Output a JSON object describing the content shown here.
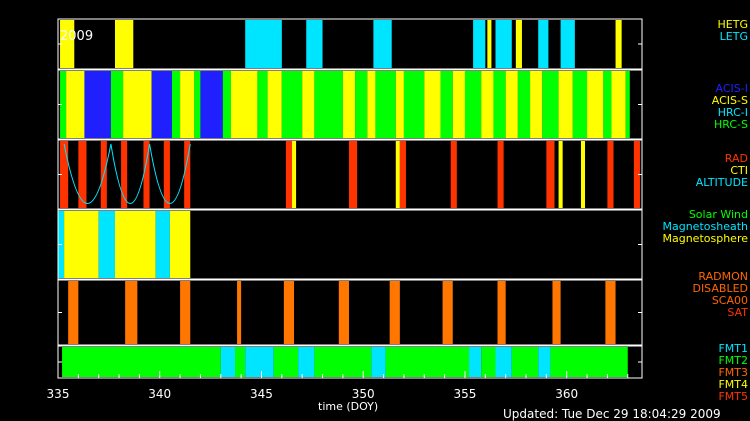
{
  "chart_data": {
    "type": "timeline",
    "year_label": "2009",
    "xlabel": "time (DOY)",
    "xlim": [
      335,
      363.7
    ],
    "x_ticks": [
      335,
      340,
      345,
      350,
      355,
      360
    ],
    "updated": "Updated: Tue Dec 29 18:04:29 2009",
    "panels": [
      {
        "id": "grating",
        "legend": [
          {
            "label": "HETG",
            "color": "#ffff00"
          },
          {
            "label": "LETG",
            "color": "#00e5ff"
          }
        ],
        "segments": [
          {
            "start": 335.1,
            "end": 335.8,
            "color": "#ffff00"
          },
          {
            "start": 337.8,
            "end": 338.7,
            "color": "#ffff00"
          },
          {
            "start": 344.2,
            "end": 346.0,
            "color": "#00e5ff"
          },
          {
            "start": 347.2,
            "end": 348.0,
            "color": "#00e5ff"
          },
          {
            "start": 350.5,
            "end": 351.4,
            "color": "#00e5ff"
          },
          {
            "start": 355.4,
            "end": 356.0,
            "color": "#00e5ff"
          },
          {
            "start": 356.1,
            "end": 356.3,
            "color": "#ffff00"
          },
          {
            "start": 356.5,
            "end": 357.3,
            "color": "#00e5ff"
          },
          {
            "start": 357.5,
            "end": 357.8,
            "color": "#ffff00"
          },
          {
            "start": 358.6,
            "end": 359.1,
            "color": "#00e5ff"
          },
          {
            "start": 359.7,
            "end": 360.4,
            "color": "#00e5ff"
          },
          {
            "start": 362.4,
            "end": 362.7,
            "color": "#ffff00"
          }
        ]
      },
      {
        "id": "instrument",
        "legend": [
          {
            "label": "ACIS-I",
            "color": "#2020ff"
          },
          {
            "label": "ACIS-S",
            "color": "#ffff00"
          },
          {
            "label": "HRC-I",
            "color": "#00e5ff"
          },
          {
            "label": "HRC-S",
            "color": "#00ff00"
          }
        ],
        "segments": [
          {
            "start": 335.1,
            "end": 335.4,
            "color": "#00ff00"
          },
          {
            "start": 335.4,
            "end": 336.3,
            "color": "#ffff00"
          },
          {
            "start": 336.3,
            "end": 337.6,
            "color": "#2020ff"
          },
          {
            "start": 337.6,
            "end": 338.2,
            "color": "#00ff00"
          },
          {
            "start": 338.2,
            "end": 339.6,
            "color": "#ffff00"
          },
          {
            "start": 339.6,
            "end": 340.6,
            "color": "#2020ff"
          },
          {
            "start": 340.6,
            "end": 341.0,
            "color": "#00ff00"
          },
          {
            "start": 341.0,
            "end": 341.7,
            "color": "#ffff00"
          },
          {
            "start": 341.7,
            "end": 342.0,
            "color": "#00ff00"
          },
          {
            "start": 342.0,
            "end": 343.1,
            "color": "#2020ff"
          },
          {
            "start": 343.1,
            "end": 343.5,
            "color": "#00ff00"
          },
          {
            "start": 343.5,
            "end": 344.8,
            "color": "#ffff00"
          },
          {
            "start": 344.8,
            "end": 345.3,
            "color": "#00ff00"
          },
          {
            "start": 345.3,
            "end": 346.0,
            "color": "#ffff00"
          },
          {
            "start": 346.0,
            "end": 347.0,
            "color": "#00ff00"
          },
          {
            "start": 347.0,
            "end": 347.6,
            "color": "#ffff00"
          },
          {
            "start": 347.6,
            "end": 349.0,
            "color": "#00ff00"
          },
          {
            "start": 349.0,
            "end": 349.6,
            "color": "#ffff00"
          },
          {
            "start": 349.6,
            "end": 350.2,
            "color": "#00ff00"
          },
          {
            "start": 350.2,
            "end": 350.6,
            "color": "#ffff00"
          },
          {
            "start": 350.6,
            "end": 351.6,
            "color": "#00ff00"
          },
          {
            "start": 351.6,
            "end": 352.0,
            "color": "#ffff00"
          },
          {
            "start": 352.0,
            "end": 353.0,
            "color": "#00ff00"
          },
          {
            "start": 353.0,
            "end": 353.8,
            "color": "#ffff00"
          },
          {
            "start": 353.8,
            "end": 354.4,
            "color": "#00ff00"
          },
          {
            "start": 354.4,
            "end": 355.0,
            "color": "#ffff00"
          },
          {
            "start": 355.0,
            "end": 355.8,
            "color": "#00ff00"
          },
          {
            "start": 355.8,
            "end": 356.4,
            "color": "#ffff00"
          },
          {
            "start": 356.4,
            "end": 357.0,
            "color": "#00ff00"
          },
          {
            "start": 357.0,
            "end": 357.6,
            "color": "#ffff00"
          },
          {
            "start": 357.6,
            "end": 358.2,
            "color": "#00ff00"
          },
          {
            "start": 358.2,
            "end": 358.8,
            "color": "#ffff00"
          },
          {
            "start": 358.8,
            "end": 359.6,
            "color": "#00ff00"
          },
          {
            "start": 359.6,
            "end": 360.3,
            "color": "#ffff00"
          },
          {
            "start": 360.3,
            "end": 361.0,
            "color": "#00ff00"
          },
          {
            "start": 361.0,
            "end": 361.8,
            "color": "#ffff00"
          },
          {
            "start": 361.8,
            "end": 362.2,
            "color": "#00ff00"
          },
          {
            "start": 362.2,
            "end": 362.9,
            "color": "#ffff00"
          },
          {
            "start": 362.9,
            "end": 363.1,
            "color": "#00ff00"
          }
        ]
      },
      {
        "id": "radiation",
        "legend": [
          {
            "label": "RAD",
            "color": "#ff3300"
          },
          {
            "label": "CTI",
            "color": "#ffff00"
          },
          {
            "label": "ALTITUDE",
            "color": "#00e5ff"
          }
        ],
        "segments": [
          {
            "start": 335.1,
            "end": 335.5,
            "color": "#ff3300"
          },
          {
            "start": 336.0,
            "end": 336.4,
            "color": "#ff3300"
          },
          {
            "start": 337.1,
            "end": 337.4,
            "color": "#ff3300"
          },
          {
            "start": 338.1,
            "end": 338.4,
            "color": "#ff3300"
          },
          {
            "start": 339.2,
            "end": 339.5,
            "color": "#ff3300"
          },
          {
            "start": 340.2,
            "end": 340.5,
            "color": "#ff3300"
          },
          {
            "start": 341.2,
            "end": 341.5,
            "color": "#ff3300"
          },
          {
            "start": 346.2,
            "end": 346.5,
            "color": "#ff3300"
          },
          {
            "start": 346.5,
            "end": 346.7,
            "color": "#ffff00"
          },
          {
            "start": 349.3,
            "end": 349.7,
            "color": "#ff3300"
          },
          {
            "start": 351.6,
            "end": 351.8,
            "color": "#ffff00"
          },
          {
            "start": 351.8,
            "end": 352.1,
            "color": "#ff3300"
          },
          {
            "start": 354.3,
            "end": 354.6,
            "color": "#ff3300"
          },
          {
            "start": 356.6,
            "end": 356.9,
            "color": "#ff3300"
          },
          {
            "start": 359.0,
            "end": 359.4,
            "color": "#ff3300"
          },
          {
            "start": 359.6,
            "end": 359.8,
            "color": "#ffff00"
          },
          {
            "start": 360.7,
            "end": 360.9,
            "color": "#ffff00"
          },
          {
            "start": 362.0,
            "end": 362.3,
            "color": "#ff3300"
          },
          {
            "start": 363.3,
            "end": 363.6,
            "color": "#ff3300"
          }
        ],
        "altitude_arcs": [
          {
            "start": 335.3,
            "end": 337.6
          },
          {
            "start": 337.6,
            "end": 339.5
          },
          {
            "start": 339.5,
            "end": 341.5
          }
        ]
      },
      {
        "id": "environment",
        "legend": [
          {
            "label": "Solar Wind",
            "color": "#00ff00"
          },
          {
            "label": "Magnetosheath",
            "color": "#00e5ff"
          },
          {
            "label": "Magnetosphere",
            "color": "#ffff00"
          }
        ],
        "segments": [
          {
            "start": 335.0,
            "end": 335.3,
            "color": "#00e5ff"
          },
          {
            "start": 335.3,
            "end": 337.0,
            "color": "#ffff00"
          },
          {
            "start": 337.0,
            "end": 337.8,
            "color": "#00e5ff"
          },
          {
            "start": 337.8,
            "end": 339.8,
            "color": "#ffff00"
          },
          {
            "start": 339.8,
            "end": 340.5,
            "color": "#00e5ff"
          },
          {
            "start": 340.5,
            "end": 341.5,
            "color": "#ffff00"
          }
        ]
      },
      {
        "id": "radmon",
        "legend": [
          {
            "label": "RADMON",
            "color": "#ff6600"
          },
          {
            "label": "DISABLED",
            "color": "#ff6600"
          },
          {
            "label": "SCA00",
            "color": "#ff6600"
          },
          {
            "label": "SAT",
            "color": "#ff3300"
          }
        ],
        "segments": [
          {
            "start": 335.5,
            "end": 336.0,
            "color": "#ff7700"
          },
          {
            "start": 338.3,
            "end": 338.9,
            "color": "#ff7700"
          },
          {
            "start": 341.0,
            "end": 341.5,
            "color": "#ff7700"
          },
          {
            "start": 343.8,
            "end": 344.0,
            "color": "#ff7700"
          },
          {
            "start": 346.1,
            "end": 346.6,
            "color": "#ff7700"
          },
          {
            "start": 348.8,
            "end": 349.3,
            "color": "#ff7700"
          },
          {
            "start": 351.3,
            "end": 351.8,
            "color": "#ff7700"
          },
          {
            "start": 353.9,
            "end": 354.4,
            "color": "#ff7700"
          },
          {
            "start": 356.6,
            "end": 357.0,
            "color": "#ff7700"
          },
          {
            "start": 359.3,
            "end": 359.7,
            "color": "#ff7700"
          },
          {
            "start": 361.9,
            "end": 362.4,
            "color": "#ff7700"
          }
        ]
      },
      {
        "id": "format",
        "legend": [
          {
            "label": "FMT1",
            "color": "#00e5ff"
          },
          {
            "label": "FMT2",
            "color": "#00ff00"
          },
          {
            "label": "FMT3",
            "color": "#ff6600"
          },
          {
            "label": "FMT4",
            "color": "#ffff00"
          },
          {
            "label": "FMT5",
            "color": "#ff3300"
          }
        ],
        "segments": [
          {
            "start": 335.2,
            "end": 343.0,
            "color": "#00ff00"
          },
          {
            "start": 343.0,
            "end": 343.7,
            "color": "#00e5ff"
          },
          {
            "start": 343.7,
            "end": 344.2,
            "color": "#00ff00"
          },
          {
            "start": 344.2,
            "end": 345.6,
            "color": "#00e5ff"
          },
          {
            "start": 345.6,
            "end": 346.8,
            "color": "#00ff00"
          },
          {
            "start": 346.8,
            "end": 347.6,
            "color": "#00e5ff"
          },
          {
            "start": 347.6,
            "end": 350.4,
            "color": "#00ff00"
          },
          {
            "start": 350.4,
            "end": 351.1,
            "color": "#00e5ff"
          },
          {
            "start": 351.1,
            "end": 355.2,
            "color": "#00ff00"
          },
          {
            "start": 355.2,
            "end": 355.8,
            "color": "#00e5ff"
          },
          {
            "start": 355.8,
            "end": 356.5,
            "color": "#00ff00"
          },
          {
            "start": 356.5,
            "end": 357.3,
            "color": "#00e5ff"
          },
          {
            "start": 357.3,
            "end": 358.6,
            "color": "#00ff00"
          },
          {
            "start": 358.6,
            "end": 359.2,
            "color": "#00e5ff"
          },
          {
            "start": 359.2,
            "end": 363.0,
            "color": "#00ff00"
          }
        ]
      }
    ]
  }
}
